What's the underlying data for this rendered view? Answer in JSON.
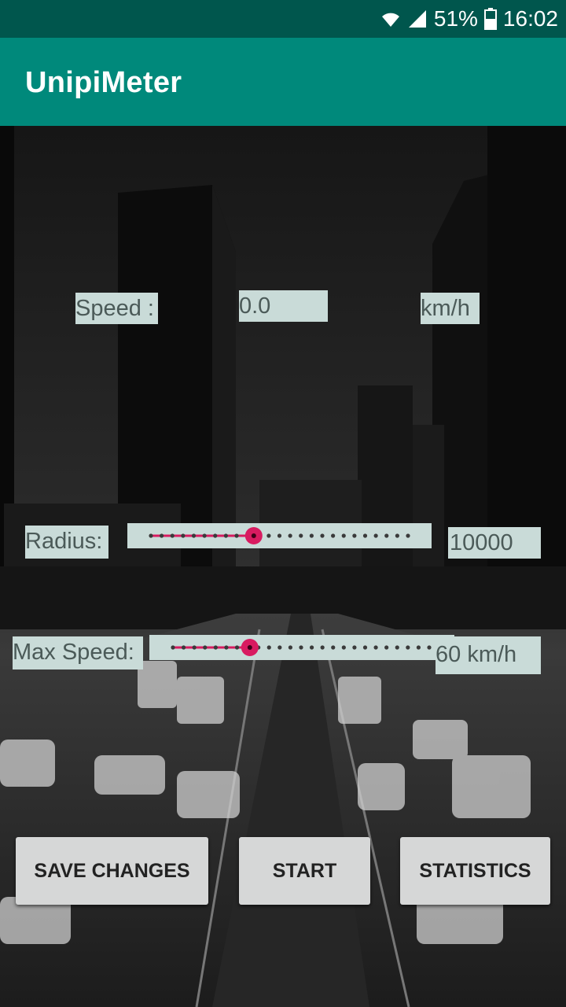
{
  "status_bar": {
    "battery": "51%",
    "time": "16:02",
    "icons": [
      "wifi-icon",
      "signal-icon",
      "battery-icon"
    ]
  },
  "app_bar": {
    "title": "UnipiMeter"
  },
  "speed": {
    "label": "Speed :",
    "value": "0.0",
    "unit": "km/h"
  },
  "radius": {
    "label": "Radius:",
    "value": "10000",
    "slider_fraction": 0.4
  },
  "max_speed": {
    "label": "Max Speed:",
    "value": "60 km/h",
    "slider_fraction": 0.3
  },
  "buttons": {
    "save": "SAVE CHANGES",
    "start": "START",
    "statistics": "STATISTICS"
  },
  "colors": {
    "status_bar": "#00564d",
    "app_bar": "#00897b",
    "accent": "#d81b60",
    "label_bg": "#c9dbd8"
  }
}
